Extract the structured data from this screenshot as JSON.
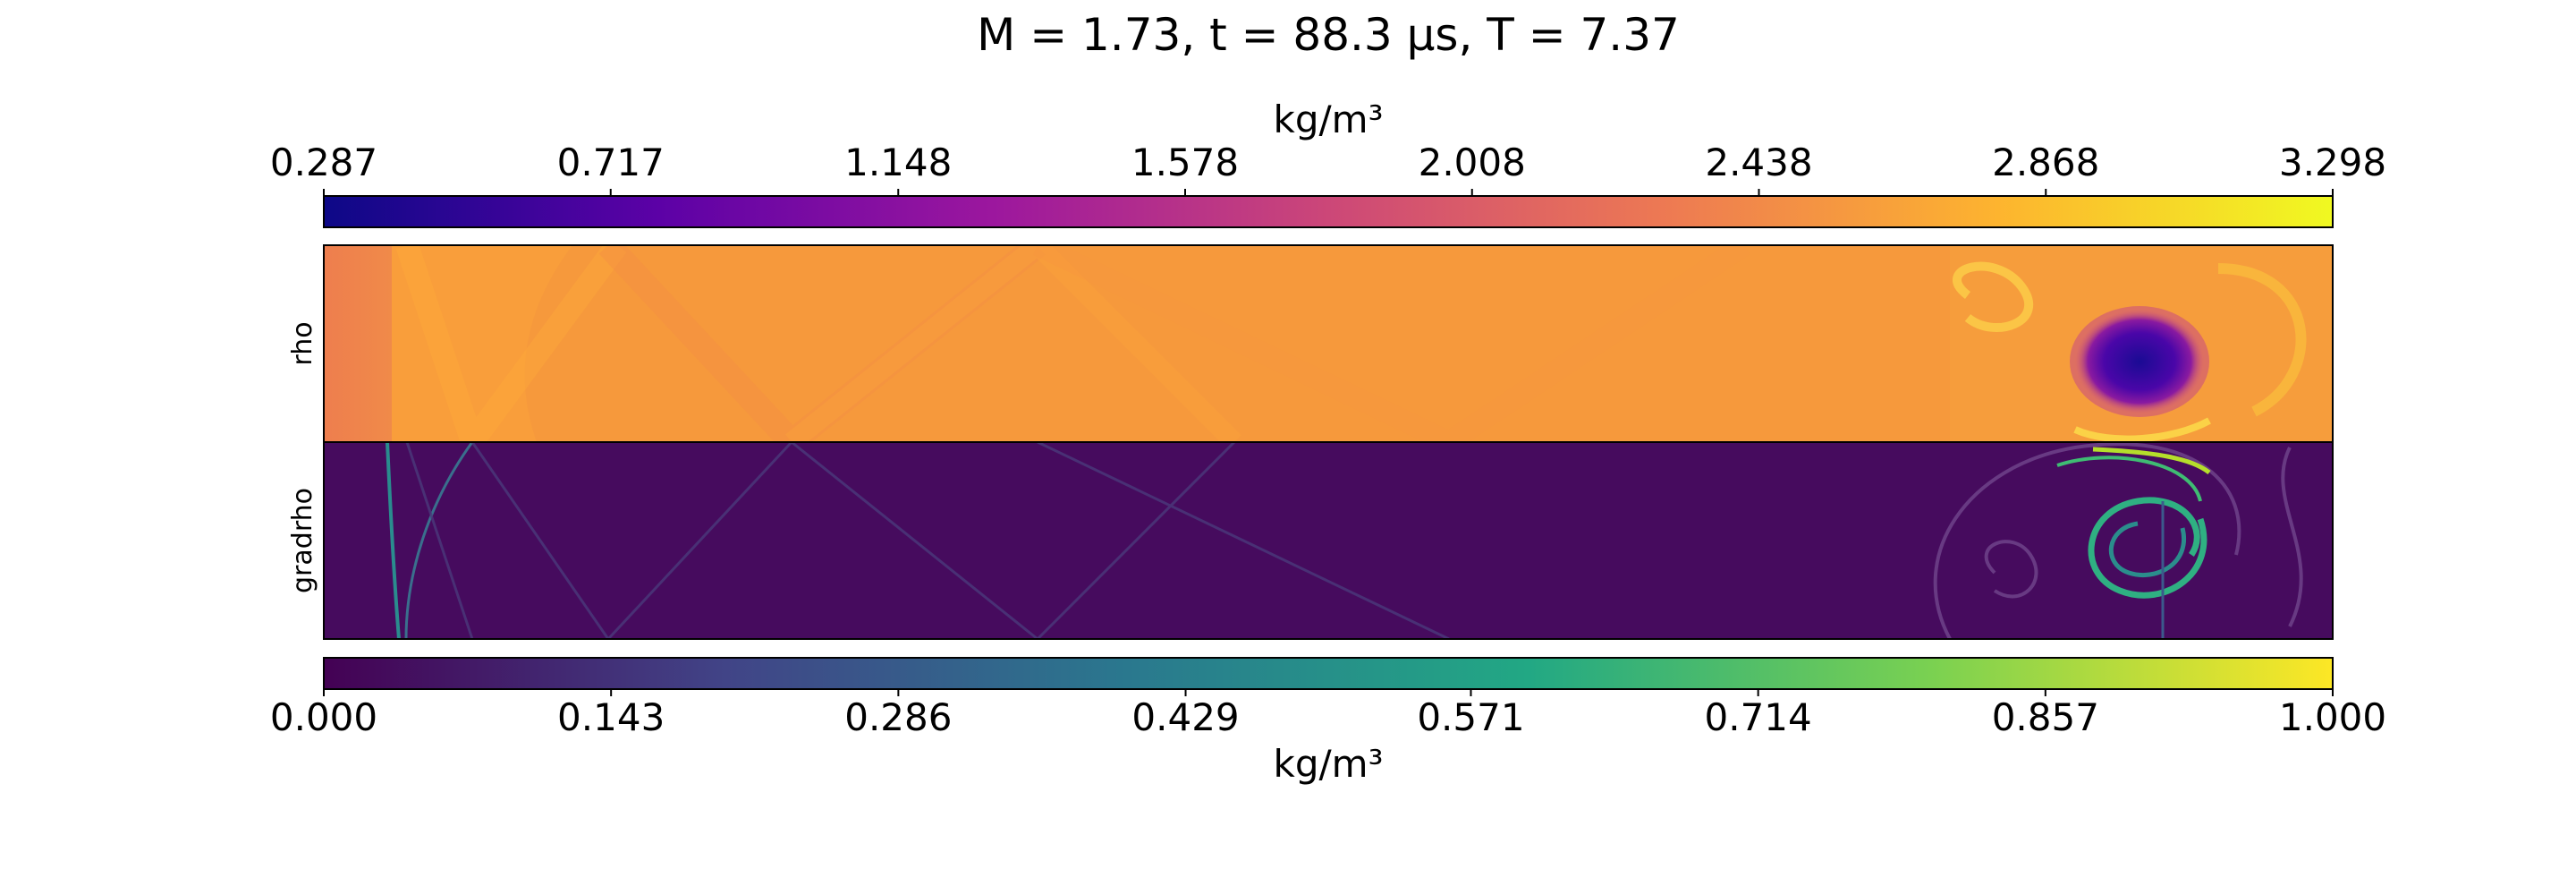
{
  "chart_data": [
    {
      "type": "heatmap",
      "title": "M = 1.73, t = 88.3 μs, T = 7.37",
      "panels": [
        {
          "name": "rho",
          "ylabel": "rho",
          "colormap": "plasma"
        },
        {
          "name": "gradrho",
          "ylabel": "gradrho",
          "colormap": "viridis"
        }
      ],
      "colorbars": [
        {
          "name": "rho",
          "label": "kg/m³",
          "placement": "top",
          "colormap": "plasma",
          "range": [
            0.287,
            3.298
          ],
          "tick_values": [
            0.287,
            0.717,
            1.148,
            1.578,
            2.008,
            2.438,
            2.868,
            3.298
          ],
          "tick_labels": [
            "0.287",
            "0.717",
            "1.148",
            "1.578",
            "2.008",
            "2.438",
            "2.868",
            "3.298"
          ]
        },
        {
          "name": "gradrho",
          "label": "kg/m³",
          "placement": "bottom",
          "colormap": "viridis",
          "range": [
            0.0,
            1.0
          ],
          "tick_values": [
            0.0,
            0.143,
            0.286,
            0.429,
            0.571,
            0.714,
            0.857,
            1.0
          ],
          "tick_labels": [
            "0.000",
            "0.143",
            "0.286",
            "0.429",
            "0.571",
            "0.714",
            "0.857",
            "1.000"
          ]
        }
      ]
    }
  ],
  "colors": {
    "plasma": [
      "#0d0887",
      "#5c01a6",
      "#9c179e",
      "#cc4778",
      "#ed7953",
      "#fdb42f",
      "#f0f921"
    ],
    "viridis": [
      "#440154",
      "#414487",
      "#2a788e",
      "#22a884",
      "#7ad151",
      "#fde725"
    ],
    "rho_background": "#f6993c",
    "gradrho_background": "#460b5e"
  }
}
